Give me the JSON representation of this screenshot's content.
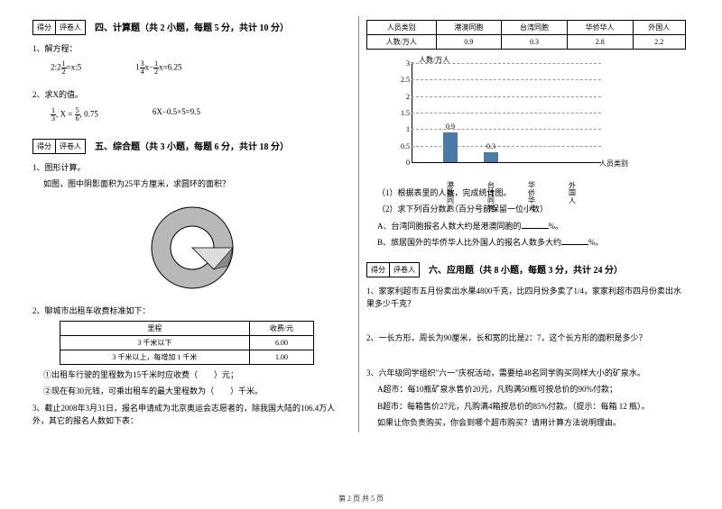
{
  "score_labels": {
    "score": "得分",
    "reviewer": "评卷人"
  },
  "section4": {
    "title": "四、计算题（共 2 小题，每题 5 分，共计 10 分）",
    "q1": {
      "stem": "1、解方程：",
      "eq1_a": "2:2",
      "eq1_b": "=x:5",
      "eq2_a": "1",
      "eq2_b": "x−",
      "eq2_c": "x=6.25"
    },
    "q2": {
      "stem": "2、求X的值。",
      "eq1_a": ", X =",
      "eq1_b": ", 0.75",
      "eq2": "6X−0.5×5=9.5"
    }
  },
  "section5": {
    "title": "五、综合题（共 3 小题，每题 6 分，共计 18 分）",
    "q1": {
      "stem": "1、图形计算。",
      "sub": "如图，图中阴影面积为25平方厘米，求圆环的面积？"
    },
    "q2": {
      "stem": "2、聊城市出租车收费标准如下：",
      "headers": [
        "里程",
        "收费/元"
      ],
      "rows": [
        [
          "3 千米以下",
          "6.00"
        ],
        [
          "3 千米以上，每增加 1 千米",
          "1.00"
        ]
      ],
      "sub1": "①出租车行驶的里程数为15千米时应收费（　　）元；",
      "sub2": "②现在有30元钱，可乘出租车的最大里程数为（　　）千米。"
    },
    "q3": {
      "stem": "3、截止2008年3月31日，报名申请成为北京奥运会志愿者的，除我国大陆的106.4万人外，其它的报名人数如下表：",
      "headers": [
        "人员类别",
        "港澳同胞",
        "台湾同胞",
        "华侨华人",
        "外国人"
      ],
      "row_label": "人数/万人",
      "values": [
        "0.9",
        "0.3",
        "2.8",
        "2.2"
      ],
      "chart": {
        "y_label": "人数/万人",
        "x_label": "人员类别",
        "y_max": 3,
        "y_step": 0.5,
        "ticks": [
          "0",
          "0.5",
          "1",
          "1.5",
          "2",
          "2.5",
          "3"
        ],
        "cats": [
          "港澳同胞",
          "台湾同胞",
          "华侨华人",
          "外国人"
        ],
        "bars": [
          0.9,
          0.3,
          null,
          null
        ],
        "bar_color": "#4a7ba8"
      },
      "sub1": "（1）根据表里的人数，完成统计图。",
      "sub2": "（2）求下列百分数。（百分号前保留一位小数）",
      "subA": "A、台湾同胞报名人数大约是港澳同胞的",
      "subA_end": "%。",
      "subB": "B、旅居国外的华侨华人比外国人的报名人数多大约",
      "subB_end": "%。"
    }
  },
  "section6": {
    "title": "六、应用题（共 8 小题，每题 3 分，共计 24 分）",
    "q1": "1、家家利超市五月份卖出水果4800千克，比四月份多卖了1/4，家家利超市四月份卖出水果多少千克？",
    "q2": "2、一长方形，周长为90厘米，长和宽的比是2：7，这个长方形的面积是多少？",
    "q3_l1": "3、六年级同学组织\"六一\"庆祝活动，需要给48名同学购买同样大小的矿泉水。",
    "q3_l2": "A超市：每10瓶矿泉水售价20元，凡购满50瓶可按总价的90%付款；",
    "q3_l3": "B超市：每箱售价27元，凡购满4箱按总价的85%付款。（提示：每箱 12 瓶）。",
    "q3_l4": "如果让你负责购买，你会到哪个超市购买？请用计算方法说明理由。"
  },
  "footer": "第 2 页 共 5 页"
}
